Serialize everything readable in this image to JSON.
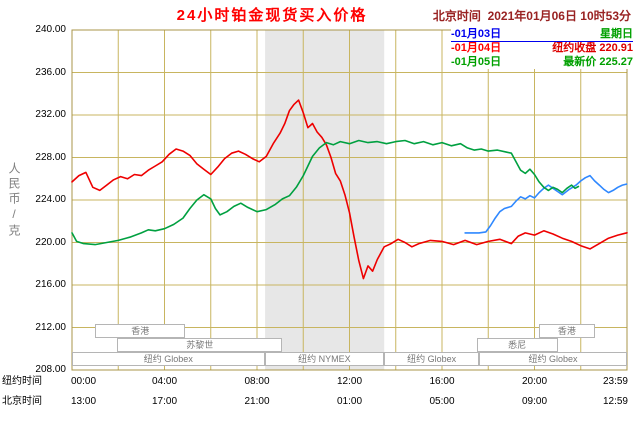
{
  "title": "24小时铂金现货买入价格",
  "datetime_label": "北京时间  2021年01月06日 10时53分",
  "legend_marker": "-",
  "legend": [
    {
      "date": "01月03日",
      "value": "星期日",
      "color": "#0000ee",
      "value_color": "#00a000"
    },
    {
      "date": "01月04日",
      "value": "纽约收盘 220.91",
      "color": "#ff0000",
      "value_color": "#dd0000"
    },
    {
      "date": "01月05日",
      "value": "最新价 225.27",
      "color": "#00a000",
      "value_color": "#00a000"
    }
  ],
  "y_axis": {
    "unit_label": "人民币/克",
    "ticks": [
      "240.00",
      "236.00",
      "232.00",
      "228.00",
      "224.00",
      "220.00",
      "216.00",
      "212.00",
      "208.00"
    ]
  },
  "x_axis": {
    "row1_label": "纽约时间",
    "row2_label": "北京时间",
    "tick_hours": [
      0,
      4,
      8,
      12,
      16,
      20,
      24
    ],
    "row1_ticks": [
      "00:00",
      "04:00",
      "08:00",
      "12:00",
      "16:00",
      "20:00",
      "23:59"
    ],
    "row2_ticks": [
      "13:00",
      "17:00",
      "21:00",
      "01:00",
      "05:00",
      "09:00",
      "12:59"
    ]
  },
  "colors": {
    "grid": "#c8b560",
    "border": "#a89448",
    "band": "#e7e7e7",
    "title": "#ff0000",
    "datetime": "#992222",
    "unit_label": "#808080",
    "session_text": "#777777"
  },
  "band": {
    "start_h": 8.35,
    "end_h": 13.5
  },
  "sessions": [
    {
      "label": "香港",
      "row": 0,
      "start_h": 1.0,
      "end_h": 4.9
    },
    {
      "label": "香港",
      "row": 0,
      "start_h": 20.2,
      "end_h": 22.6
    },
    {
      "label": "苏黎世",
      "row": 1,
      "start_h": 1.95,
      "end_h": 9.1
    },
    {
      "label": "悉尼",
      "row": 1,
      "start_h": 17.5,
      "end_h": 21.0
    },
    {
      "label": "纽约 Globex",
      "row": 2,
      "start_h": 0,
      "end_h": 8.33
    },
    {
      "label": "纽约 NYMEX",
      "row": 2,
      "start_h": 8.33,
      "end_h": 13.5
    },
    {
      "label": "纽约 Globex",
      "row": 2,
      "start_h": 13.5,
      "end_h": 17.6
    },
    {
      "label": "纽约 Globex",
      "row": 2,
      "start_h": 17.6,
      "end_h": 24
    }
  ],
  "chart_data": {
    "type": "line",
    "title": "24小时铂金现货买入价格",
    "ylabel": "人民币/克",
    "ylim": [
      208,
      240
    ],
    "xlim": [
      0,
      24
    ],
    "x_axis_unit": "hour (New York time)",
    "grid": true,
    "legend_position": "top-right",
    "series": [
      {
        "name": "01月03日",
        "note": "星期日",
        "color": "#2f88ff",
        "points": [
          [
            17.0,
            220.9
          ],
          [
            17.3,
            220.9
          ],
          [
            17.6,
            220.9
          ],
          [
            17.9,
            221.0
          ],
          [
            18.1,
            221.6
          ],
          [
            18.3,
            222.3
          ],
          [
            18.5,
            222.9
          ],
          [
            18.7,
            223.2
          ],
          [
            19.0,
            223.4
          ],
          [
            19.2,
            223.9
          ],
          [
            19.4,
            224.3
          ],
          [
            19.6,
            224.1
          ],
          [
            19.8,
            224.4
          ],
          [
            20.0,
            224.2
          ],
          [
            20.2,
            224.7
          ],
          [
            20.4,
            225.1
          ],
          [
            20.6,
            225.4
          ],
          [
            20.8,
            225.1
          ],
          [
            21.0,
            224.8
          ],
          [
            21.2,
            224.5
          ],
          [
            21.5,
            225.0
          ],
          [
            21.8,
            225.4
          ],
          [
            22.0,
            225.8
          ],
          [
            22.2,
            226.1
          ],
          [
            22.4,
            226.3
          ],
          [
            22.6,
            225.8
          ],
          [
            22.8,
            225.4
          ],
          [
            23.0,
            225.0
          ],
          [
            23.2,
            224.7
          ],
          [
            23.4,
            224.9
          ],
          [
            23.6,
            225.2
          ],
          [
            23.8,
            225.4
          ],
          [
            23.98,
            225.5
          ]
        ]
      },
      {
        "name": "01月04日",
        "note": "纽约收盘 220.91",
        "color": "#ee0000",
        "points": [
          [
            0,
            225.7
          ],
          [
            0.3,
            226.3
          ],
          [
            0.6,
            226.6
          ],
          [
            0.9,
            225.2
          ],
          [
            1.2,
            224.9
          ],
          [
            1.5,
            225.4
          ],
          [
            1.8,
            225.9
          ],
          [
            2.1,
            226.2
          ],
          [
            2.4,
            226.0
          ],
          [
            2.7,
            226.4
          ],
          [
            3.0,
            226.3
          ],
          [
            3.3,
            226.8
          ],
          [
            3.6,
            227.2
          ],
          [
            3.9,
            227.6
          ],
          [
            4.2,
            228.3
          ],
          [
            4.5,
            228.8
          ],
          [
            4.8,
            228.6
          ],
          [
            5.1,
            228.2
          ],
          [
            5.4,
            227.4
          ],
          [
            5.7,
            226.9
          ],
          [
            6.0,
            226.4
          ],
          [
            6.3,
            227.1
          ],
          [
            6.6,
            227.9
          ],
          [
            6.9,
            228.4
          ],
          [
            7.2,
            228.6
          ],
          [
            7.5,
            228.3
          ],
          [
            7.8,
            227.9
          ],
          [
            8.1,
            227.6
          ],
          [
            8.4,
            228.1
          ],
          [
            8.7,
            229.3
          ],
          [
            9.0,
            230.3
          ],
          [
            9.2,
            231.2
          ],
          [
            9.4,
            232.4
          ],
          [
            9.6,
            233.0
          ],
          [
            9.8,
            233.4
          ],
          [
            10.0,
            232.2
          ],
          [
            10.2,
            230.8
          ],
          [
            10.4,
            231.2
          ],
          [
            10.6,
            230.4
          ],
          [
            10.8,
            229.9
          ],
          [
            11.0,
            229.2
          ],
          [
            11.2,
            228.0
          ],
          [
            11.4,
            226.5
          ],
          [
            11.6,
            225.8
          ],
          [
            11.8,
            224.5
          ],
          [
            12.0,
            222.8
          ],
          [
            12.2,
            220.5
          ],
          [
            12.4,
            218.3
          ],
          [
            12.6,
            216.6
          ],
          [
            12.8,
            217.8
          ],
          [
            13.0,
            217.3
          ],
          [
            13.2,
            218.4
          ],
          [
            13.5,
            219.6
          ],
          [
            13.8,
            219.9
          ],
          [
            14.1,
            220.3
          ],
          [
            14.4,
            220.0
          ],
          [
            14.7,
            219.6
          ],
          [
            15.0,
            219.9
          ],
          [
            15.5,
            220.2
          ],
          [
            16.0,
            220.1
          ],
          [
            16.5,
            219.8
          ],
          [
            17.0,
            220.2
          ],
          [
            17.5,
            219.8
          ],
          [
            18.0,
            220.1
          ],
          [
            18.5,
            220.3
          ],
          [
            19.0,
            219.9
          ],
          [
            19.3,
            220.6
          ],
          [
            19.6,
            220.9
          ],
          [
            20.0,
            220.7
          ],
          [
            20.4,
            221.1
          ],
          [
            20.8,
            220.8
          ],
          [
            21.2,
            220.4
          ],
          [
            21.6,
            220.1
          ],
          [
            22.0,
            219.7
          ],
          [
            22.4,
            219.4
          ],
          [
            22.8,
            219.9
          ],
          [
            23.2,
            220.4
          ],
          [
            23.6,
            220.7
          ],
          [
            24,
            220.91
          ]
        ]
      },
      {
        "name": "01月05日",
        "note": "最新价 225.27",
        "color": "#00a040",
        "points": [
          [
            0,
            220.9
          ],
          [
            0.2,
            220.1
          ],
          [
            0.5,
            219.9
          ],
          [
            1.0,
            219.8
          ],
          [
            1.5,
            220.0
          ],
          [
            2.0,
            220.2
          ],
          [
            2.5,
            220.5
          ],
          [
            3.0,
            220.9
          ],
          [
            3.3,
            221.2
          ],
          [
            3.6,
            221.1
          ],
          [
            4.0,
            221.3
          ],
          [
            4.4,
            221.7
          ],
          [
            4.8,
            222.3
          ],
          [
            5.1,
            223.2
          ],
          [
            5.4,
            224.0
          ],
          [
            5.7,
            224.5
          ],
          [
            6.0,
            224.1
          ],
          [
            6.2,
            223.2
          ],
          [
            6.4,
            222.6
          ],
          [
            6.7,
            222.9
          ],
          [
            7.0,
            223.4
          ],
          [
            7.3,
            223.7
          ],
          [
            7.6,
            223.3
          ],
          [
            8.0,
            222.9
          ],
          [
            8.4,
            223.1
          ],
          [
            8.8,
            223.6
          ],
          [
            9.1,
            224.1
          ],
          [
            9.4,
            224.4
          ],
          [
            9.7,
            225.2
          ],
          [
            10.0,
            226.3
          ],
          [
            10.2,
            227.2
          ],
          [
            10.4,
            228.1
          ],
          [
            10.7,
            228.9
          ],
          [
            11.0,
            229.4
          ],
          [
            11.3,
            229.2
          ],
          [
            11.6,
            229.5
          ],
          [
            12.0,
            229.3
          ],
          [
            12.4,
            229.6
          ],
          [
            12.8,
            229.4
          ],
          [
            13.2,
            229.5
          ],
          [
            13.6,
            229.3
          ],
          [
            14.0,
            229.5
          ],
          [
            14.4,
            229.6
          ],
          [
            14.8,
            229.3
          ],
          [
            15.2,
            229.5
          ],
          [
            15.6,
            229.2
          ],
          [
            16.0,
            229.4
          ],
          [
            16.4,
            229.1
          ],
          [
            16.8,
            229.3
          ],
          [
            17.1,
            228.9
          ],
          [
            17.4,
            228.7
          ],
          [
            17.7,
            228.8
          ],
          [
            18.0,
            228.6
          ],
          [
            18.4,
            228.7
          ],
          [
            18.8,
            228.5
          ],
          [
            19.0,
            228.4
          ],
          [
            19.2,
            227.6
          ],
          [
            19.4,
            226.8
          ],
          [
            19.6,
            226.5
          ],
          [
            19.8,
            226.9
          ],
          [
            20.0,
            226.4
          ],
          [
            20.2,
            225.7
          ],
          [
            20.4,
            225.2
          ],
          [
            20.6,
            224.9
          ],
          [
            20.8,
            225.2
          ],
          [
            21.0,
            225.0
          ],
          [
            21.2,
            224.7
          ],
          [
            21.4,
            225.1
          ],
          [
            21.6,
            225.4
          ],
          [
            21.75,
            225.1
          ],
          [
            21.9,
            225.27
          ]
        ]
      }
    ]
  }
}
